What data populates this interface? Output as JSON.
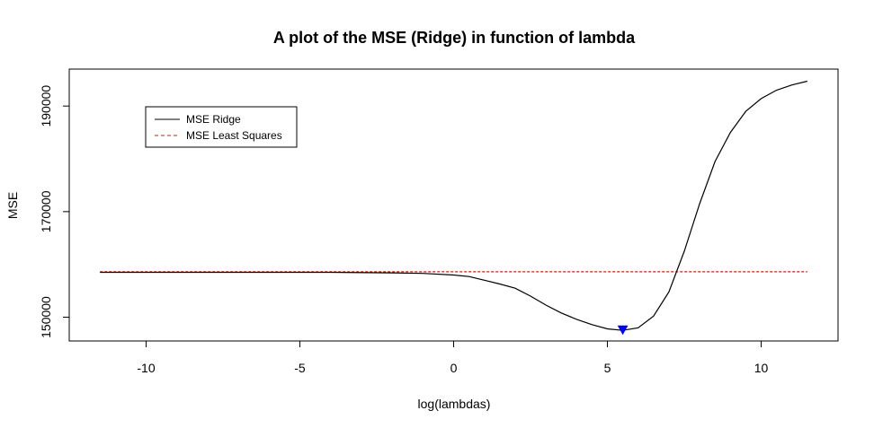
{
  "chart_data": {
    "type": "line",
    "title": "A plot of the MSE (Ridge) in function of lambda",
    "xlabel": "log(lambdas)",
    "ylabel": "MSE",
    "xlim": [
      -12.5,
      12.5
    ],
    "ylim": [
      145500,
      197000
    ],
    "x_ticks": [
      -10,
      -5,
      0,
      5,
      10
    ],
    "x_tick_labels": [
      "-10",
      "-5",
      "0",
      "5",
      "10"
    ],
    "y_ticks": [
      150000,
      170000,
      190000
    ],
    "y_tick_labels": [
      "150000",
      "170000",
      "190000"
    ],
    "grid": false,
    "legend_position": "top-left",
    "legend": [
      {
        "label": "MSE Ridge",
        "color": "#000000",
        "dash": "solid"
      },
      {
        "label": "MSE Least Squares",
        "color": "#cc2200",
        "dash": "dashed"
      }
    ],
    "series": [
      {
        "name": "MSE Ridge",
        "color": "#000000",
        "style": "solid",
        "x": [
          -11.5,
          -10,
          -8,
          -6,
          -4,
          -2,
          -1,
          0,
          0.5,
          1,
          1.5,
          2,
          2.5,
          3,
          3.5,
          4,
          4.5,
          5,
          5.5,
          6,
          6.5,
          7,
          7.5,
          8,
          8.5,
          9,
          9.5,
          10,
          10.5,
          11,
          11.5
        ],
        "y": [
          158500,
          158500,
          158500,
          158500,
          158500,
          158400,
          158300,
          158000,
          157700,
          157000,
          156300,
          155500,
          154000,
          152300,
          150800,
          149600,
          148600,
          147800,
          147500,
          148000,
          150200,
          154800,
          162500,
          171500,
          179500,
          185000,
          189000,
          191400,
          193000,
          194000,
          194700
        ]
      },
      {
        "name": "MSE Least Squares",
        "color": "#cc2200",
        "style": "dashed",
        "x": [
          -11.5,
          11.5
        ],
        "y": [
          158600,
          158600
        ]
      }
    ],
    "min_marker": {
      "x": 5.5,
      "y": 147500,
      "color": "#0000ff",
      "shape": "triangle-down"
    }
  }
}
